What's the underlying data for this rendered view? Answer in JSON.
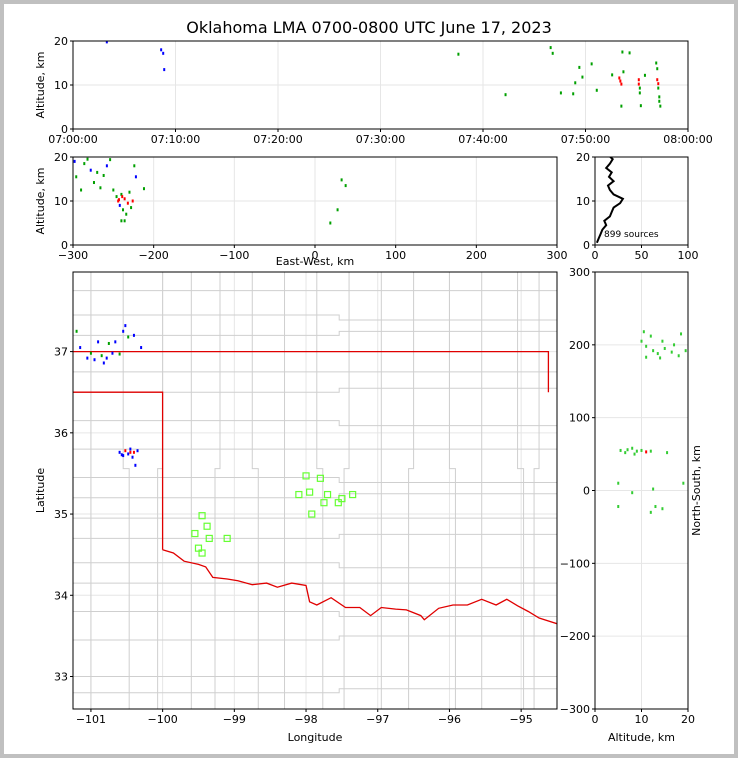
{
  "title": "Oklahoma LMA 0700-0800 UTC June 17, 2023",
  "colors": {
    "frame": "#c0c0c0",
    "county_lines": "#cfcfcf",
    "state_border": "#e00000",
    "station_marker": "#66ff33",
    "sources_early": "#0000ff",
    "sources_mid": "#00a000",
    "sources_late": "#ff0000"
  },
  "chart_data": [
    {
      "id": "time_height",
      "type": "scatter",
      "title": "",
      "xlabel": "",
      "ylabel": "Altitude, km",
      "xlim": [
        0,
        60
      ],
      "ylim": [
        0,
        20
      ],
      "xticks": [
        0,
        10,
        20,
        30,
        40,
        50,
        60
      ],
      "xtick_labels": [
        "07:00:00",
        "07:10:00",
        "07:20:00",
        "07:30:00",
        "07:40:00",
        "07:50:00",
        "08:00:00"
      ],
      "yticks": [
        0,
        10,
        20
      ],
      "ytick_labels": [
        "0",
        "10",
        "20"
      ],
      "x_units": "minutes after 07:00 UTC",
      "points": [
        {
          "t": 3.3,
          "alt": 19.8
        },
        {
          "t": 8.6,
          "alt": 18.0
        },
        {
          "t": 8.8,
          "alt": 17.2
        },
        {
          "t": 8.9,
          "alt": 13.5
        },
        {
          "t": 37.6,
          "alt": 17.0
        },
        {
          "t": 42.2,
          "alt": 7.8
        },
        {
          "t": 46.6,
          "alt": 18.5
        },
        {
          "t": 46.8,
          "alt": 17.2
        },
        {
          "t": 47.6,
          "alt": 8.2
        },
        {
          "t": 48.8,
          "alt": 8.0
        },
        {
          "t": 49.0,
          "alt": 10.5
        },
        {
          "t": 49.4,
          "alt": 14.0
        },
        {
          "t": 49.7,
          "alt": 11.8
        },
        {
          "t": 50.6,
          "alt": 14.8
        },
        {
          "t": 51.1,
          "alt": 8.8
        },
        {
          "t": 52.6,
          "alt": 12.3
        },
        {
          "t": 53.3,
          "alt": 11.6
        },
        {
          "t": 53.4,
          "alt": 10.9
        },
        {
          "t": 53.5,
          "alt": 10.2
        },
        {
          "t": 53.5,
          "alt": 5.2
        },
        {
          "t": 53.6,
          "alt": 17.5
        },
        {
          "t": 53.7,
          "alt": 13.0
        },
        {
          "t": 54.3,
          "alt": 17.3
        },
        {
          "t": 55.2,
          "alt": 11.2
        },
        {
          "t": 55.2,
          "alt": 10.2
        },
        {
          "t": 55.3,
          "alt": 9.3
        },
        {
          "t": 55.3,
          "alt": 8.2
        },
        {
          "t": 55.4,
          "alt": 5.3
        },
        {
          "t": 55.8,
          "alt": 12.2
        },
        {
          "t": 56.9,
          "alt": 15.0
        },
        {
          "t": 57.0,
          "alt": 13.7
        },
        {
          "t": 57.0,
          "alt": 11.2
        },
        {
          "t": 57.1,
          "alt": 10.3
        },
        {
          "t": 57.1,
          "alt": 9.3
        },
        {
          "t": 57.2,
          "alt": 7.3
        },
        {
          "t": 57.2,
          "alt": 6.3
        },
        {
          "t": 57.3,
          "alt": 5.2
        }
      ]
    },
    {
      "id": "ew_height",
      "type": "scatter",
      "title": "",
      "xlabel": "East-West, km",
      "ylabel": "Altitude, km",
      "xlim": [
        -300,
        300
      ],
      "ylim": [
        0,
        20
      ],
      "xticks": [
        -300,
        -200,
        -100,
        0,
        100,
        200,
        300
      ],
      "xtick_labels": [
        "−300",
        "−200",
        "−100",
        "0",
        "100",
        "200",
        "300"
      ],
      "yticks": [
        0,
        10,
        20
      ],
      "ytick_labels": [
        "0",
        "10",
        "20"
      ],
      "points": [
        {
          "x": -298,
          "alt": 19.0
        },
        {
          "x": -296,
          "alt": 15.5
        },
        {
          "x": -290,
          "alt": 12.5
        },
        {
          "x": -286,
          "alt": 18.5
        },
        {
          "x": -282,
          "alt": 19.5
        },
        {
          "x": -278,
          "alt": 17.0
        },
        {
          "x": -274,
          "alt": 14.2
        },
        {
          "x": -270,
          "alt": 16.5
        },
        {
          "x": -266,
          "alt": 13.0
        },
        {
          "x": -262,
          "alt": 15.8
        },
        {
          "x": -258,
          "alt": 18.0
        },
        {
          "x": -254,
          "alt": 19.4
        },
        {
          "x": -250,
          "alt": 12.5
        },
        {
          "x": -246,
          "alt": 11.0
        },
        {
          "x": -244,
          "alt": 10.0
        },
        {
          "x": -242,
          "alt": 9.0
        },
        {
          "x": -240,
          "alt": 11.5
        },
        {
          "x": -238,
          "alt": 8.0
        },
        {
          "x": -236,
          "alt": 10.5
        },
        {
          "x": -234,
          "alt": 7.0
        },
        {
          "x": -232,
          "alt": 9.5
        },
        {
          "x": -230,
          "alt": 12.0
        },
        {
          "x": -228,
          "alt": 8.5
        },
        {
          "x": -226,
          "alt": 10.0
        },
        {
          "x": -224,
          "alt": 18.0
        },
        {
          "x": -222,
          "alt": 15.5
        },
        {
          "x": -240,
          "alt": 5.5
        },
        {
          "x": -236,
          "alt": 5.5
        },
        {
          "x": -212,
          "alt": 12.8
        },
        {
          "x": -243,
          "alt": 10.3
        },
        {
          "x": -239,
          "alt": 11.0
        },
        {
          "x": 33,
          "alt": 14.8
        },
        {
          "x": 38,
          "alt": 13.5
        },
        {
          "x": 28,
          "alt": 8.0
        },
        {
          "x": 19,
          "alt": 5.0
        }
      ]
    },
    {
      "id": "altitude_histogram",
      "type": "line",
      "title": "",
      "xlabel": "",
      "ylabel": "",
      "xlim": [
        0,
        100
      ],
      "ylim": [
        0,
        20
      ],
      "xticks": [
        0,
        50,
        100
      ],
      "xtick_labels": [
        "0",
        "50",
        "100"
      ],
      "yticks": [
        0,
        10,
        20
      ],
      "ytick_labels": [
        "0",
        "10",
        "20"
      ],
      "annotation": "899 sources",
      "alt": [
        0.5,
        1.5,
        2.5,
        3.5,
        4.5,
        5.5,
        6.5,
        7.5,
        8.5,
        9.5,
        10.5,
        11.5,
        12.5,
        13.5,
        14.5,
        15.5,
        16.5,
        17.5,
        18.5,
        19.5,
        20.5
      ],
      "counts": [
        2,
        4,
        6,
        8,
        12,
        10,
        16,
        18,
        20,
        27,
        30,
        20,
        16,
        14,
        20,
        15,
        18,
        12,
        16,
        19,
        14
      ]
    },
    {
      "id": "plan_view",
      "type": "scatter",
      "title": "",
      "xlabel": "Longitude",
      "ylabel": "Latitude",
      "xlim": [
        -101.25,
        -94.5
      ],
      "ylim": [
        32.6,
        37.98
      ],
      "xticks": [
        -101,
        -100,
        -99,
        -98,
        -97,
        -96,
        -95
      ],
      "xtick_labels": [
        "−101",
        "−100",
        "−99",
        "−98",
        "−97",
        "−96",
        "−95"
      ],
      "yticks": [
        33,
        34,
        35,
        36,
        37
      ],
      "ytick_labels": [
        "33",
        "34",
        "35",
        "36",
        "37"
      ],
      "sources": [
        {
          "lon": -101.2,
          "lat": 37.25
        },
        {
          "lon": -101.15,
          "lat": 37.05
        },
        {
          "lon": -101.05,
          "lat": 36.92
        },
        {
          "lon": -101.0,
          "lat": 36.98
        },
        {
          "lon": -100.95,
          "lat": 36.9
        },
        {
          "lon": -100.9,
          "lat": 37.12
        },
        {
          "lon": -100.85,
          "lat": 36.95
        },
        {
          "lon": -100.82,
          "lat": 36.86
        },
        {
          "lon": -100.78,
          "lat": 36.92
        },
        {
          "lon": -100.75,
          "lat": 37.1
        },
        {
          "lon": -100.7,
          "lat": 36.98
        },
        {
          "lon": -100.66,
          "lat": 37.12
        },
        {
          "lon": -100.6,
          "lat": 36.97
        },
        {
          "lon": -100.55,
          "lat": 37.25
        },
        {
          "lon": -100.52,
          "lat": 37.32
        },
        {
          "lon": -100.48,
          "lat": 37.18
        },
        {
          "lon": -100.4,
          "lat": 37.2
        },
        {
          "lon": -100.3,
          "lat": 37.05
        },
        {
          "lon": -100.6,
          "lat": 35.76
        },
        {
          "lon": -100.55,
          "lat": 35.72
        },
        {
          "lon": -100.52,
          "lat": 35.78
        },
        {
          "lon": -100.48,
          "lat": 35.74
        },
        {
          "lon": -100.45,
          "lat": 35.8
        },
        {
          "lon": -100.42,
          "lat": 35.7
        },
        {
          "lon": -100.4,
          "lat": 35.76
        },
        {
          "lon": -100.38,
          "lat": 35.6
        },
        {
          "lon": -100.35,
          "lat": 35.78
        },
        {
          "lon": -100.57,
          "lat": 35.73
        },
        {
          "lon": -100.45,
          "lat": 35.76
        }
      ],
      "stations": [
        {
          "lon": -99.45,
          "lat": 34.98
        },
        {
          "lon": -99.38,
          "lat": 34.85
        },
        {
          "lon": -99.55,
          "lat": 34.76
        },
        {
          "lon": -99.35,
          "lat": 34.7
        },
        {
          "lon": -99.5,
          "lat": 34.58
        },
        {
          "lon": -99.45,
          "lat": 34.52
        },
        {
          "lon": -99.1,
          "lat": 34.7
        },
        {
          "lon": -98.0,
          "lat": 35.47
        },
        {
          "lon": -97.8,
          "lat": 35.44
        },
        {
          "lon": -98.1,
          "lat": 35.24
        },
        {
          "lon": -97.95,
          "lat": 35.27
        },
        {
          "lon": -97.7,
          "lat": 35.24
        },
        {
          "lon": -97.35,
          "lat": 35.24
        },
        {
          "lon": -97.75,
          "lat": 35.14
        },
        {
          "lon": -97.55,
          "lat": 35.14
        },
        {
          "lon": -97.5,
          "lat": 35.19
        },
        {
          "lon": -97.92,
          "lat": 35.0
        }
      ]
    },
    {
      "id": "height_ns",
      "type": "scatter",
      "title": "",
      "xlabel": "Altitude, km",
      "ylabel": "North-South, km",
      "xlim": [
        0,
        20
      ],
      "ylim": [
        -300,
        300
      ],
      "xticks": [
        0,
        10,
        20
      ],
      "xtick_labels": [
        "0",
        "10",
        "20"
      ],
      "yticks": [
        -300,
        -200,
        -100,
        0,
        100,
        200,
        300
      ],
      "ytick_labels": [
        "−300",
        "−200",
        "−100",
        "0",
        "100",
        "200",
        "300"
      ],
      "points": [
        {
          "alt": 10.5,
          "y": 218
        },
        {
          "alt": 12,
          "y": 212
        },
        {
          "alt": 10,
          "y": 205
        },
        {
          "alt": 11,
          "y": 198
        },
        {
          "alt": 12.5,
          "y": 192
        },
        {
          "alt": 13.5,
          "y": 188
        },
        {
          "alt": 15,
          "y": 195
        },
        {
          "alt": 16.5,
          "y": 190
        },
        {
          "alt": 18,
          "y": 185
        },
        {
          "alt": 19.5,
          "y": 192
        },
        {
          "alt": 17,
          "y": 200
        },
        {
          "alt": 14,
          "y": 182
        },
        {
          "alt": 11,
          "y": 183
        },
        {
          "alt": 18.5,
          "y": 215
        },
        {
          "alt": 14.5,
          "y": 205
        },
        {
          "alt": 5.5,
          "y": 55
        },
        {
          "alt": 7,
          "y": 56
        },
        {
          "alt": 8,
          "y": 58
        },
        {
          "alt": 9,
          "y": 54
        },
        {
          "alt": 10,
          "y": 55
        },
        {
          "alt": 11,
          "y": 53
        },
        {
          "alt": 12,
          "y": 54
        },
        {
          "alt": 6.5,
          "y": 52
        },
        {
          "alt": 8.5,
          "y": 50
        },
        {
          "alt": 15.5,
          "y": 52
        },
        {
          "alt": 5,
          "y": 10
        },
        {
          "alt": 8,
          "y": -3
        },
        {
          "alt": 12.5,
          "y": 2
        },
        {
          "alt": 14.5,
          "y": -25
        },
        {
          "alt": 12,
          "y": -30
        },
        {
          "alt": 5,
          "y": -22
        },
        {
          "alt": 13,
          "y": -22
        },
        {
          "alt": 19,
          "y": 10
        }
      ]
    }
  ]
}
